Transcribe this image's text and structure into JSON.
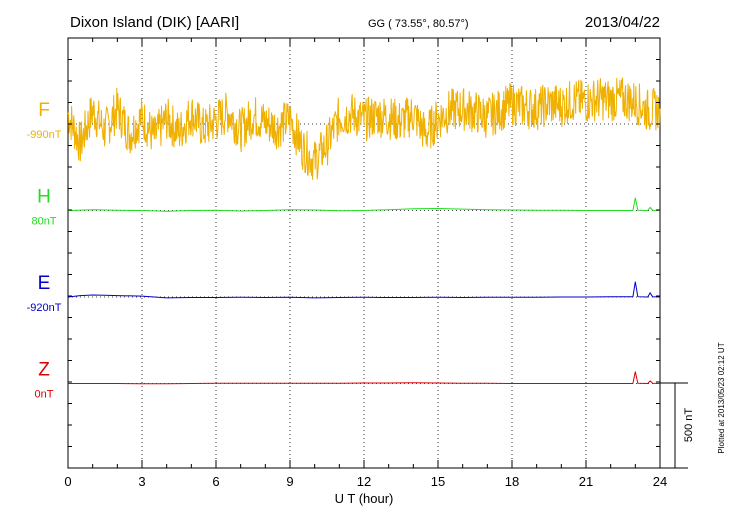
{
  "header": {
    "station": "Dixon Island (DIK)  [AARI]",
    "coords": "GG ( 73.55°,  80.57°)",
    "date": "2013/04/22"
  },
  "footer": {
    "plotted_note": "Plotted at 2013/05/23 02:12 UT"
  },
  "scale_bar": {
    "label": "500 nT",
    "value_nT": 500
  },
  "chart_data": {
    "type": "line",
    "xlabel": "U T (hour)",
    "ylabel": "",
    "xlim": [
      0,
      24
    ],
    "x_ticks": [
      0,
      3,
      6,
      9,
      12,
      15,
      18,
      21,
      24
    ],
    "x_tick_labels": [
      "0",
      "3",
      "6",
      "9",
      "12",
      "15",
      "18",
      "21",
      "24"
    ],
    "grid": true,
    "units": "nT",
    "series": [
      {
        "name": "F",
        "baseline_label": "-990nT",
        "color": "#f0b000",
        "baseline_level": 1,
        "values": [
          [
            0,
            60
          ],
          [
            0.5,
            -120
          ],
          [
            1,
            80
          ],
          [
            1.5,
            -40
          ],
          [
            2,
            90
          ],
          [
            2.5,
            -60
          ],
          [
            3,
            40
          ],
          [
            3.5,
            -80
          ],
          [
            4,
            30
          ],
          [
            4.5,
            -50
          ],
          [
            5,
            60
          ],
          [
            5.5,
            -30
          ],
          [
            6,
            20
          ],
          [
            6.5,
            70
          ],
          [
            7,
            -40
          ],
          [
            7.5,
            50
          ],
          [
            8,
            10
          ],
          [
            8.5,
            -20
          ],
          [
            9,
            30
          ],
          [
            9.5,
            -140
          ],
          [
            10,
            -220
          ],
          [
            10.5,
            -120
          ],
          [
            11,
            40
          ],
          [
            11.5,
            60
          ],
          [
            12,
            20
          ],
          [
            12.5,
            50
          ],
          [
            13,
            40
          ],
          [
            13.5,
            10
          ],
          [
            14,
            60
          ],
          [
            14.5,
            -60
          ],
          [
            15,
            30
          ],
          [
            15.5,
            80
          ],
          [
            16,
            90
          ],
          [
            16.5,
            70
          ],
          [
            17,
            40
          ],
          [
            17.5,
            80
          ],
          [
            18,
            120
          ],
          [
            18.5,
            100
          ],
          [
            19,
            90
          ],
          [
            19.5,
            120
          ],
          [
            20,
            110
          ],
          [
            20.5,
            140
          ],
          [
            21,
            130
          ],
          [
            21.5,
            150
          ],
          [
            22,
            140
          ],
          [
            22.5,
            150
          ],
          [
            23,
            130
          ],
          [
            23.5,
            80
          ],
          [
            24,
            90
          ]
        ]
      },
      {
        "name": "H",
        "baseline_label": "80nT",
        "color": "#22dd22",
        "baseline_level": 2,
        "values": [
          [
            0,
            0
          ],
          [
            1,
            5
          ],
          [
            2,
            2
          ],
          [
            3,
            0
          ],
          [
            4,
            -5
          ],
          [
            5,
            0
          ],
          [
            6,
            2
          ],
          [
            7,
            -3
          ],
          [
            8,
            0
          ],
          [
            9,
            5
          ],
          [
            10,
            3
          ],
          [
            11,
            -2
          ],
          [
            12,
            0
          ],
          [
            13,
            5
          ],
          [
            14,
            10
          ],
          [
            15,
            12
          ],
          [
            16,
            8
          ],
          [
            17,
            5
          ],
          [
            18,
            3
          ],
          [
            19,
            2
          ],
          [
            20,
            1
          ],
          [
            21,
            0
          ],
          [
            22,
            0
          ],
          [
            22.9,
            0
          ],
          [
            23,
            75
          ],
          [
            23.1,
            2
          ],
          [
            23.5,
            0
          ],
          [
            23.6,
            18
          ],
          [
            23.7,
            2
          ],
          [
            24,
            0
          ]
        ]
      },
      {
        "name": "E",
        "baseline_label": "-920nT",
        "color": "#0000cc",
        "baseline_level": 3,
        "values": [
          [
            0,
            0
          ],
          [
            0.5,
            8
          ],
          [
            1,
            12
          ],
          [
            1.5,
            10
          ],
          [
            2,
            8
          ],
          [
            3,
            5
          ],
          [
            4,
            -5
          ],
          [
            5,
            -3
          ],
          [
            6,
            -3
          ],
          [
            7,
            -2
          ],
          [
            8,
            -3
          ],
          [
            9,
            -2
          ],
          [
            10,
            -5
          ],
          [
            11,
            -3
          ],
          [
            12,
            -2
          ],
          [
            13,
            -3
          ],
          [
            14,
            -3
          ],
          [
            15,
            -2
          ],
          [
            16,
            -3
          ],
          [
            17,
            -2
          ],
          [
            18,
            -2
          ],
          [
            19,
            -1
          ],
          [
            20,
            0
          ],
          [
            21,
            0
          ],
          [
            22,
            1
          ],
          [
            22.9,
            1
          ],
          [
            23,
            90
          ],
          [
            23.1,
            2
          ],
          [
            23.5,
            0
          ],
          [
            23.6,
            25
          ],
          [
            23.7,
            2
          ],
          [
            24,
            0
          ]
        ]
      },
      {
        "name": "Z",
        "baseline_label": "0nT",
        "color": "#dd0000",
        "baseline_level": 4,
        "values": [
          [
            0,
            0
          ],
          [
            1,
            0
          ],
          [
            2,
            0
          ],
          [
            3,
            -2
          ],
          [
            4,
            -2
          ],
          [
            5,
            0
          ],
          [
            6,
            1
          ],
          [
            7,
            1
          ],
          [
            8,
            2
          ],
          [
            9,
            2
          ],
          [
            10,
            2
          ],
          [
            11,
            2
          ],
          [
            12,
            3
          ],
          [
            13,
            3
          ],
          [
            14,
            4
          ],
          [
            15,
            3
          ],
          [
            16,
            2
          ],
          [
            17,
            1
          ],
          [
            18,
            0
          ],
          [
            19,
            0
          ],
          [
            20,
            0
          ],
          [
            21,
            0
          ],
          [
            22,
            0
          ],
          [
            22.9,
            0
          ],
          [
            23,
            70
          ],
          [
            23.1,
            2
          ],
          [
            23.5,
            0
          ],
          [
            23.6,
            15
          ],
          [
            23.7,
            2
          ],
          [
            24,
            0
          ]
        ]
      }
    ]
  }
}
